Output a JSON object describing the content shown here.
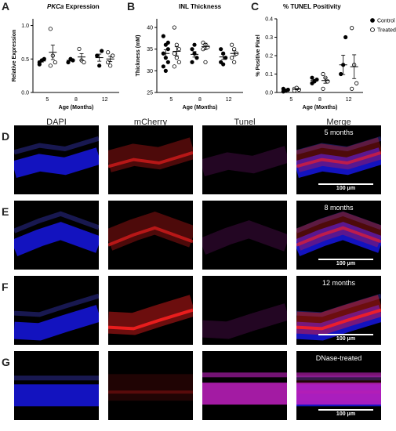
{
  "panels": {
    "A": "A",
    "B": "B",
    "C": "C",
    "D": "D",
    "E": "E",
    "F": "F",
    "G": "G"
  },
  "chart_data": [
    {
      "type": "scatter",
      "panel": "A",
      "title_italic": "PKCa",
      "title_rest": " Expression",
      "ylabel": "Relative Expression",
      "xlabel": "Age (Months)",
      "categories": [
        "5",
        "8",
        "12"
      ],
      "yticks": [
        "0.0",
        "0.5",
        "1.0"
      ],
      "ylim": [
        0,
        1.1
      ],
      "series": [
        {
          "name": "Control",
          "filled": true,
          "points": [
            [
              0,
              0.45
            ],
            [
              0,
              0.48
            ],
            [
              0,
              0.5
            ],
            [
              0,
              0.42
            ],
            [
              1,
              0.45
            ],
            [
              1,
              0.5
            ],
            [
              1,
              0.48
            ],
            [
              2,
              0.55
            ],
            [
              2,
              0.4
            ],
            [
              2,
              0.62
            ]
          ],
          "means": [
            0.47,
            0.48,
            0.52
          ]
        },
        {
          "name": "Treated",
          "filled": false,
          "points": [
            [
              0,
              0.95
            ],
            [
              0,
              0.55
            ],
            [
              0,
              0.45
            ],
            [
              0,
              0.4
            ],
            [
              1,
              0.65
            ],
            [
              1,
              0.48
            ],
            [
              1,
              0.45
            ],
            [
              2,
              0.6
            ],
            [
              2,
              0.4
            ],
            [
              2,
              0.55
            ],
            [
              2,
              0.45
            ]
          ],
          "means": [
            0.6,
            0.53,
            0.5
          ]
        }
      ]
    },
    {
      "type": "scatter",
      "panel": "B",
      "title": "INL Thickness",
      "ylabel": "Thickness (mM)",
      "xlabel": "Age (Months)",
      "categories": [
        "5",
        "8",
        "12"
      ],
      "yticks": [
        "25",
        "30",
        "35",
        "40"
      ],
      "ylim": [
        25,
        42
      ],
      "series": [
        {
          "name": "Control",
          "filled": true,
          "points": [
            [
              0,
              38
            ],
            [
              0,
              36
            ],
            [
              0,
              35
            ],
            [
              0,
              34
            ],
            [
              0,
              33
            ],
            [
              0,
              32
            ],
            [
              0,
              31
            ],
            [
              0,
              30
            ],
            [
              0,
              36.5
            ],
            [
              1,
              35
            ],
            [
              1,
              34
            ],
            [
              1,
              33
            ],
            [
              1,
              32
            ],
            [
              1,
              36
            ],
            [
              2,
              35
            ],
            [
              2,
              34
            ],
            [
              2,
              33
            ],
            [
              2,
              32
            ],
            [
              2,
              31.5
            ]
          ],
          "means": [
            34,
            33.8,
            33.2
          ]
        },
        {
          "name": "Treated",
          "filled": false,
          "points": [
            [
              0,
              40
            ],
            [
              0,
              36
            ],
            [
              0,
              35
            ],
            [
              0,
              34
            ],
            [
              0,
              33
            ],
            [
              0,
              32
            ],
            [
              0,
              31
            ],
            [
              1,
              36.5
            ],
            [
              1,
              36
            ],
            [
              1,
              35.5
            ],
            [
              1,
              35
            ],
            [
              1,
              32
            ],
            [
              2,
              36
            ],
            [
              2,
              35
            ],
            [
              2,
              34
            ],
            [
              2,
              33
            ],
            [
              2,
              32
            ]
          ],
          "means": [
            34.5,
            35.6,
            34
          ]
        }
      ]
    },
    {
      "type": "scatter",
      "panel": "C",
      "title": "% TUNEL Positivity",
      "ylabel": "% Positive Pixel",
      "xlabel": "Age (Months)",
      "categories": [
        "5",
        "8",
        "12"
      ],
      "yticks": [
        "0.0",
        "0.1",
        "0.2",
        "0.3",
        "0.4"
      ],
      "ylim": [
        0,
        0.4
      ],
      "series": [
        {
          "name": "Control",
          "filled": true,
          "points": [
            [
              0,
              0.005
            ],
            [
              0,
              0.01
            ],
            [
              0,
              0.015
            ],
            [
              0,
              0.02
            ],
            [
              1,
              0.05
            ],
            [
              1,
              0.06
            ],
            [
              1,
              0.07
            ],
            [
              1,
              0.08
            ],
            [
              2,
              0.1
            ],
            [
              2,
              0.15
            ],
            [
              2,
              0.3
            ]
          ],
          "means": [
            0.012,
            0.065,
            0.15
          ]
        },
        {
          "name": "Treated",
          "filled": false,
          "points": [
            [
              0,
              0.02
            ],
            [
              0,
              0.025
            ],
            [
              0,
              0.015
            ],
            [
              0,
              0.01
            ],
            [
              1,
              0.1
            ],
            [
              1,
              0.08
            ],
            [
              1,
              0.06
            ],
            [
              1,
              0.02
            ],
            [
              2,
              0.35
            ],
            [
              2,
              0.15
            ],
            [
              2,
              0.05
            ],
            [
              2,
              0.02
            ]
          ],
          "means": [
            0.018,
            0.065,
            0.14
          ]
        }
      ],
      "legend": [
        {
          "label": "Control",
          "filled": true
        },
        {
          "label": "Treated",
          "filled": false
        }
      ],
      "legend_position": "top-right"
    }
  ],
  "columns": [
    "DAPI",
    "mCherry",
    "Tunel",
    "Merge"
  ],
  "rows": [
    {
      "letter": "D",
      "label": "5 months",
      "scale": "100 μm"
    },
    {
      "letter": "E",
      "label": "8 months",
      "scale": "100 μm"
    },
    {
      "letter": "F",
      "label": "12 months",
      "scale": "100 μm"
    },
    {
      "letter": "G",
      "label": "DNase-treated",
      "scale": "100 μm"
    }
  ],
  "colors": {
    "dapi": "#1a1aff",
    "mcherry": "#ff2020",
    "tunel": "#c020c0",
    "bg": "#000000"
  }
}
